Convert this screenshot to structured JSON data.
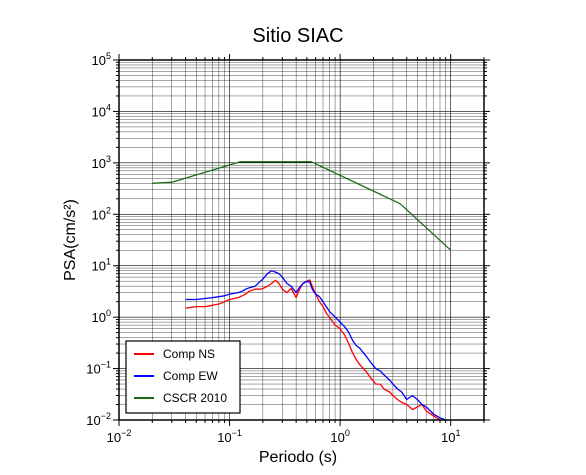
{
  "chart_data": {
    "type": "line",
    "title": "Sitio SIAC",
    "xlabel": "Periodo (s)",
    "ylabel": "PSA(cm/s²)",
    "xscale": "log",
    "yscale": "log",
    "xlim": [
      0.01,
      20
    ],
    "ylim": [
      0.01,
      100000
    ],
    "grid": true,
    "legend_position": "bottom-left",
    "xticks": [
      {
        "base": "10",
        "exp": "−2"
      },
      {
        "base": "10",
        "exp": "−1"
      },
      {
        "base": "10",
        "exp": "0"
      },
      {
        "base": "10",
        "exp": "1"
      }
    ],
    "yticks": [
      {
        "base": "10",
        "exp": "−2"
      },
      {
        "base": "10",
        "exp": "−1"
      },
      {
        "base": "10",
        "exp": "0"
      },
      {
        "base": "10",
        "exp": "1"
      },
      {
        "base": "10",
        "exp": "2"
      },
      {
        "base": "10",
        "exp": "3"
      },
      {
        "base": "10",
        "exp": "4"
      },
      {
        "base": "10",
        "exp": "5"
      }
    ],
    "series": [
      {
        "name": "Comp NS",
        "color": "#ff0000",
        "x": [
          0.04,
          0.05,
          0.06,
          0.07,
          0.08,
          0.09,
          0.1,
          0.12,
          0.13,
          0.14,
          0.15,
          0.17,
          0.19,
          0.2,
          0.22,
          0.24,
          0.26,
          0.28,
          0.3,
          0.33,
          0.36,
          0.4,
          0.43,
          0.46,
          0.5,
          0.53,
          0.56,
          0.6,
          0.65,
          0.7,
          0.75,
          0.8,
          0.9,
          1.0,
          1.1,
          1.2,
          1.3,
          1.4,
          1.5,
          1.7,
          1.9,
          2.1,
          2.3,
          2.5,
          2.8,
          3.0,
          3.3,
          3.6,
          4.0,
          4.5,
          5.0,
          5.5,
          6.0,
          7.0,
          8.0
        ],
        "y": [
          1.5,
          1.6,
          1.6,
          1.7,
          1.8,
          2.0,
          2.2,
          2.4,
          2.6,
          2.8,
          3.2,
          3.5,
          3.5,
          3.6,
          4.0,
          4.5,
          5.2,
          4.5,
          3.5,
          3.0,
          3.6,
          2.4,
          3.5,
          4.5,
          5.0,
          5.3,
          4.0,
          2.8,
          2.0,
          1.6,
          1.2,
          1.0,
          0.7,
          0.6,
          0.45,
          0.3,
          0.2,
          0.15,
          0.12,
          0.09,
          0.065,
          0.05,
          0.05,
          0.04,
          0.035,
          0.03,
          0.025,
          0.022,
          0.02,
          0.016,
          0.018,
          0.02,
          0.015,
          0.012,
          0.01
        ]
      },
      {
        "name": "Comp EW",
        "color": "#0000ff",
        "x": [
          0.04,
          0.05,
          0.06,
          0.07,
          0.08,
          0.09,
          0.1,
          0.12,
          0.13,
          0.14,
          0.15,
          0.17,
          0.19,
          0.2,
          0.22,
          0.24,
          0.26,
          0.28,
          0.3,
          0.33,
          0.36,
          0.4,
          0.43,
          0.46,
          0.5,
          0.53,
          0.56,
          0.6,
          0.65,
          0.7,
          0.75,
          0.8,
          0.9,
          1.0,
          1.1,
          1.2,
          1.3,
          1.4,
          1.5,
          1.7,
          1.9,
          2.1,
          2.3,
          2.5,
          2.8,
          3.0,
          3.3,
          3.6,
          4.0,
          4.5,
          5.0,
          5.5,
          6.0,
          7.0,
          8.0,
          9.0
        ],
        "y": [
          2.2,
          2.2,
          2.3,
          2.4,
          2.5,
          2.6,
          2.8,
          3.0,
          3.2,
          3.5,
          3.7,
          4.0,
          5.0,
          5.5,
          7.0,
          8.0,
          7.5,
          7.0,
          6.0,
          4.5,
          4.0,
          3.0,
          3.8,
          4.5,
          5.0,
          4.8,
          3.5,
          2.8,
          2.5,
          2.0,
          1.6,
          1.3,
          1.0,
          0.8,
          0.65,
          0.5,
          0.35,
          0.28,
          0.25,
          0.18,
          0.13,
          0.1,
          0.09,
          0.075,
          0.06,
          0.05,
          0.04,
          0.035,
          0.025,
          0.03,
          0.025,
          0.02,
          0.018,
          0.013,
          0.011,
          0.01
        ]
      },
      {
        "name": "CSCR 2010",
        "color": "#1a6b1a",
        "x": [
          0.02,
          0.03,
          0.125,
          0.55,
          3.5,
          10
        ],
        "y": [
          400,
          420,
          1050,
          1050,
          160,
          20
        ]
      }
    ]
  }
}
